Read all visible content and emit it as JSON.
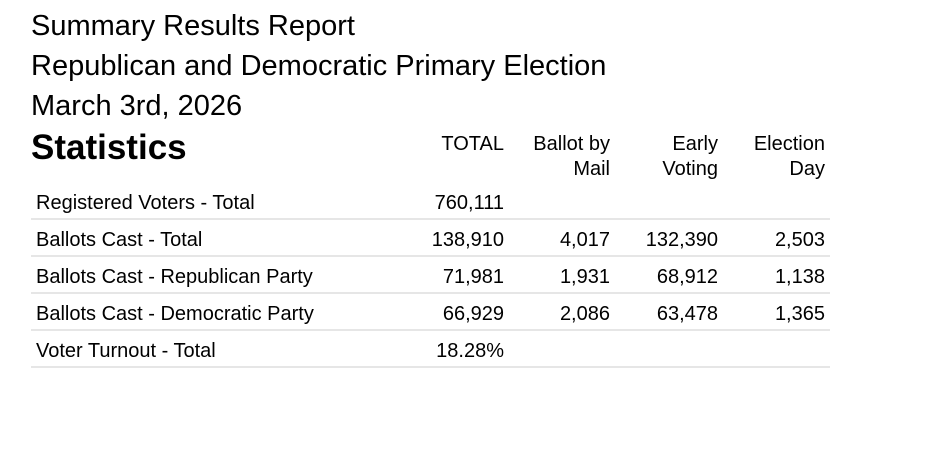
{
  "report": {
    "title": "Summary Results Report",
    "election": "Republican and Democratic Primary Election",
    "date": "March 3rd, 2026"
  },
  "statistics": {
    "heading": "Statistics",
    "columns": {
      "total": "TOTAL",
      "mail_line1": "Ballot by",
      "mail_line2": "Mail",
      "early_line1": "Early",
      "early_line2": "Voting",
      "day_line1": "Election",
      "day_line2": "Day"
    },
    "rows": [
      {
        "label": "Registered Voters - Total",
        "total": "760,111",
        "mail": "",
        "early": "",
        "day": ""
      },
      {
        "label": "Ballots Cast - Total",
        "total": "138,910",
        "mail": "4,017",
        "early": "132,390",
        "day": "2,503"
      },
      {
        "label": "Ballots Cast - Republican Party",
        "total": "71,981",
        "mail": "1,931",
        "early": "68,912",
        "day": "1,138"
      },
      {
        "label": "Ballots Cast - Democratic Party",
        "total": "66,929",
        "mail": "2,086",
        "early": "63,478",
        "day": "1,365"
      },
      {
        "label": "Voter Turnout - Total",
        "total": "18.28%",
        "mail": "",
        "early": "",
        "day": ""
      }
    ]
  }
}
